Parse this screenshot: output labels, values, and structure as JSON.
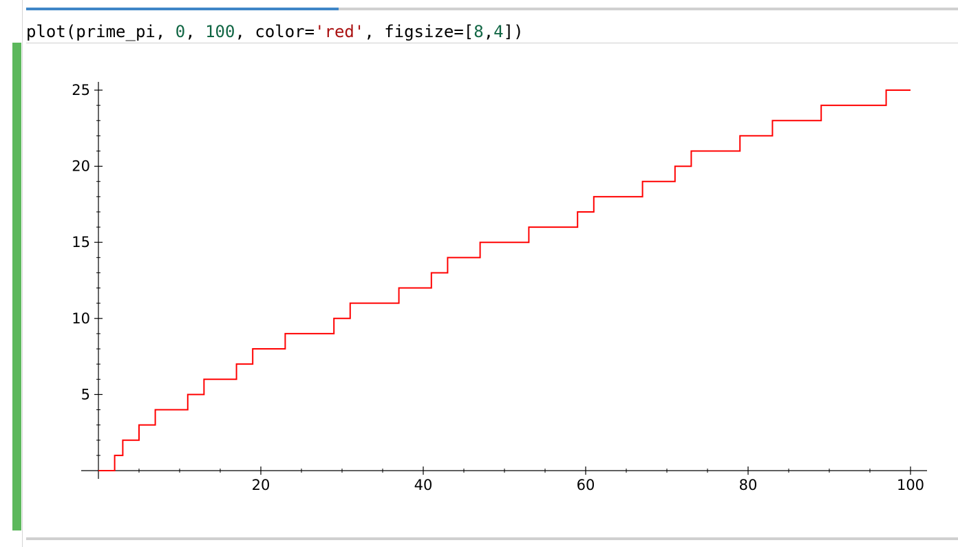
{
  "cell": {
    "progress_fraction": 0.335,
    "code_tokens": [
      {
        "text": "plot(prime_pi, ",
        "kind": "plain"
      },
      {
        "text": "0",
        "kind": "num"
      },
      {
        "text": ", ",
        "kind": "plain"
      },
      {
        "text": "100",
        "kind": "num"
      },
      {
        "text": ", color=",
        "kind": "plain"
      },
      {
        "text": "'red'",
        "kind": "str"
      },
      {
        "text": ", figsize=[",
        "kind": "plain"
      },
      {
        "text": "8",
        "kind": "num"
      },
      {
        "text": ",",
        "kind": "plain"
      },
      {
        "text": "4",
        "kind": "num"
      },
      {
        "text": "])",
        "kind": "plain"
      }
    ]
  },
  "colors": {
    "line": "#ff0000",
    "output_bar": "#5cb85c",
    "progress": "#3f86c7"
  },
  "chart_data": {
    "type": "line",
    "title": "",
    "xlabel": "",
    "ylabel": "",
    "xlim": [
      0,
      100
    ],
    "ylim": [
      0,
      25
    ],
    "grid": false,
    "step": "post",
    "x_ticks": [
      20,
      40,
      60,
      80,
      100
    ],
    "x_tick_labels": [
      "20",
      "40",
      "60",
      "80",
      "100"
    ],
    "y_ticks": [
      5,
      10,
      15,
      20,
      25
    ],
    "y_tick_labels": [
      "5",
      "10",
      "15",
      "20",
      "25"
    ],
    "x_minor_step": 5,
    "y_minor_step": 1,
    "series": [
      {
        "color": "red",
        "x": [
          0,
          2,
          3,
          5,
          7,
          11,
          13,
          17,
          19,
          23,
          29,
          31,
          37,
          41,
          43,
          47,
          53,
          59,
          61,
          67,
          71,
          73,
          79,
          83,
          89,
          97,
          100
        ],
        "y": [
          0,
          1,
          2,
          3,
          4,
          5,
          6,
          7,
          8,
          9,
          10,
          11,
          12,
          13,
          14,
          15,
          16,
          17,
          18,
          19,
          20,
          21,
          22,
          23,
          24,
          25,
          25
        ]
      }
    ]
  }
}
